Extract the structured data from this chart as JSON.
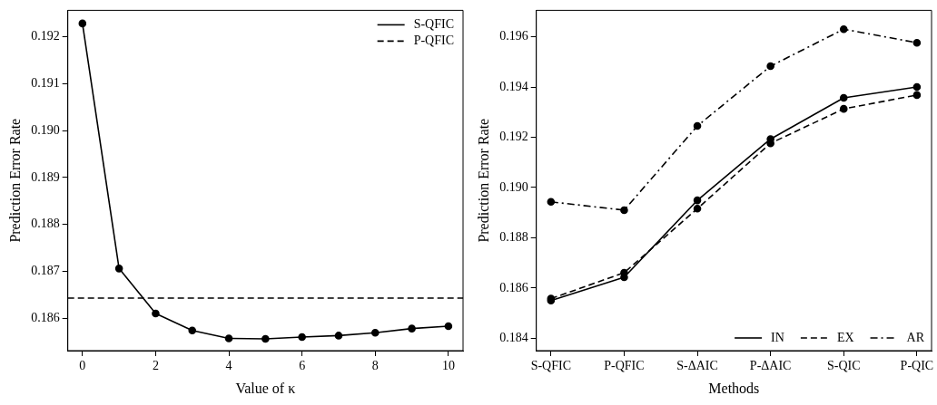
{
  "chart_data": [
    {
      "type": "line",
      "xlabel": "Value of κ",
      "ylabel": "Prediction Error Rate",
      "x": [
        0,
        1,
        2,
        3,
        4,
        5,
        6,
        7,
        8,
        9,
        10
      ],
      "series": [
        {
          "name": "S-QFIC",
          "color": "#000000",
          "line_style": "solid",
          "values": [
            0.19228,
            0.18706,
            0.1861,
            0.18574,
            0.18557,
            0.18556,
            0.1856,
            0.18563,
            0.18569,
            0.18578,
            0.18583
          ]
        }
      ],
      "ref_lines": [
        {
          "axis": "y",
          "value": 0.18643,
          "label": "P-QFIC",
          "color": "#000000",
          "line_style": "dashed"
        }
      ],
      "xlim": [
        -0.4,
        10.4
      ],
      "xticks": [
        0,
        2,
        4,
        6,
        8,
        10
      ],
      "ylim": [
        0.18531,
        0.19256
      ],
      "yticks": [
        0.186,
        0.187,
        0.188,
        0.189,
        {
          "value": 0.19,
          "label": "0.190"
        },
        0.191,
        0.192
      ],
      "grid": false,
      "legend": "top right",
      "marker": "circle"
    },
    {
      "type": "line",
      "xlabel": "Methods",
      "ylabel": "Prediction Error Rate",
      "categories": [
        "S-QFIC",
        "P-QFIC",
        "S-ΔAIC",
        "P-ΔAIC",
        "S-QIC",
        "P-QIC"
      ],
      "series": [
        {
          "name": "IN",
          "color": "#000000",
          "line_style": "solid",
          "values": [
            0.1855,
            0.18643,
            0.18949,
            0.19193,
            0.19357,
            0.194
          ]
        },
        {
          "name": "EX",
          "color": "#000000",
          "line_style": "dashed",
          "values": [
            0.18558,
            0.18661,
            0.18916,
            0.19176,
            0.19313,
            0.19368
          ]
        },
        {
          "name": "AR",
          "color": "#000000",
          "line_style": "dashdot",
          "values": [
            0.18943,
            0.1891,
            0.19245,
            0.19483,
            0.1963,
            0.19576
          ]
        }
      ],
      "ylim": [
        0.18351,
        0.19705
      ],
      "yticks": [
        0.184,
        0.186,
        0.188,
        {
          "value": 0.19,
          "label": "0.190"
        },
        0.192,
        0.194,
        0.196
      ],
      "grid": false,
      "legend": "bottom right",
      "marker": "circle"
    }
  ]
}
